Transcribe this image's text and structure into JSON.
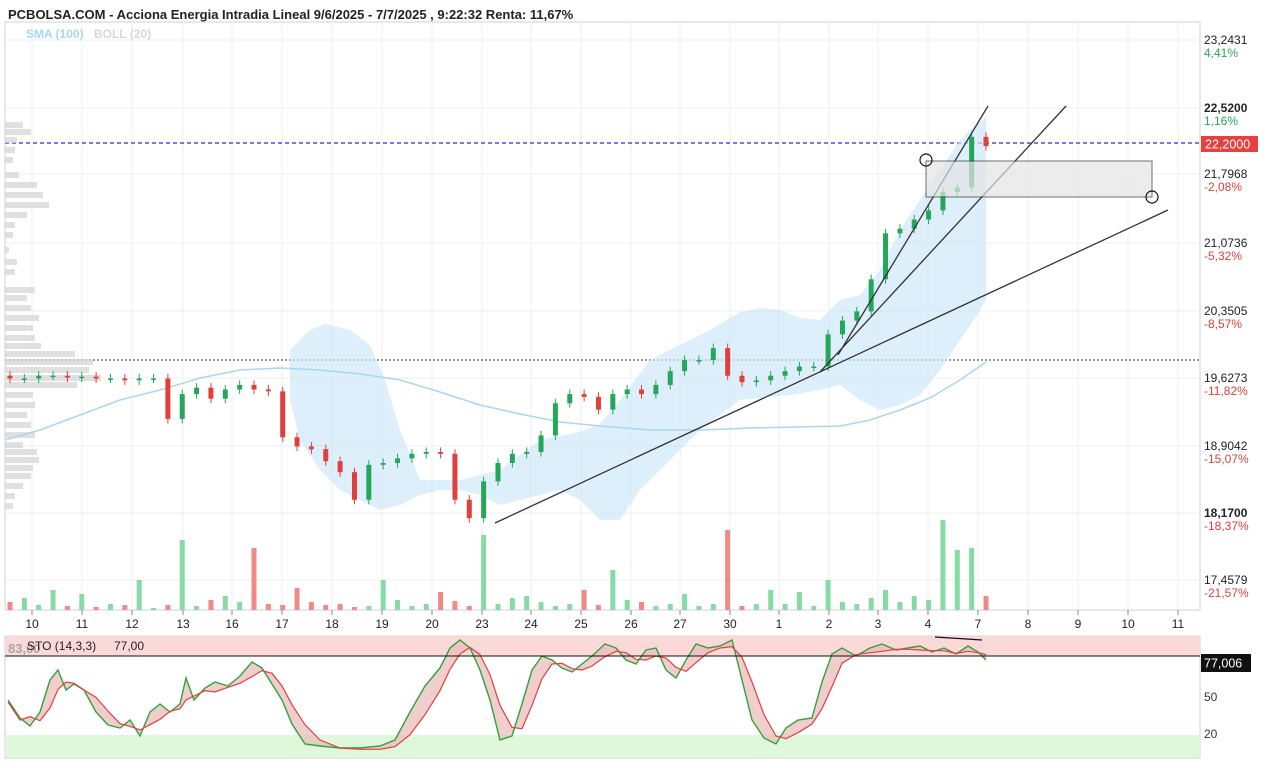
{
  "header": {
    "title": "PCBOLSA.COM - Acciona Energia Intradia Lineal 9/6/2025 - 7/7/2025 , 9:22:32 Renta: 11,67%",
    "sma_label": "SMA (100)",
    "boll_label": "BOLL (20)"
  },
  "price_axis": [
    {
      "price": "23,2431",
      "pct": "4,41%",
      "pos": true
    },
    {
      "price": "22,5200",
      "pct": "1,16%",
      "pos": true,
      "bold": true
    },
    {
      "price": "21,7968",
      "pct": "-2,08%",
      "pos": false
    },
    {
      "price": "21,0736",
      "pct": "-5,32%",
      "pos": false
    },
    {
      "price": "20,3505",
      "pct": "-8,57%",
      "pos": false
    },
    {
      "price": "19,6273",
      "pct": "-11,82%",
      "pos": false
    },
    {
      "price": "18,9042",
      "pct": "-15,07%",
      "pos": false
    },
    {
      "price": "18,1700",
      "pct": "-18,37%",
      "pos": false,
      "bold": true
    },
    {
      "price": "17,4579",
      "pct": "-21,57%",
      "pos": false
    }
  ],
  "current_price": "22,2000",
  "stoch": {
    "title": "STO (14,3,3)",
    "value_text": "77,00",
    "overlay_text": "83,00",
    "current": "77,006",
    "levels": [
      "50",
      "20"
    ]
  },
  "colors": {
    "up": "#26a65b",
    "down": "#e0403c",
    "vol_up": "#86dba4",
    "vol_down": "#f08a86",
    "band": "#cfe8f8",
    "sma": "#a9d7f1",
    "last_price_bg": "#e8403c",
    "dash_line": "#2b2bd8"
  },
  "chart_data": {
    "type": "candlestick",
    "title": "PCBOLSA.COM - Acciona Energia Intradia Lineal 9/6/2025 - 7/7/2025 , 9:22:32 Renta: 11,67%",
    "x_tick_labels": [
      "10",
      "11",
      "12",
      "13",
      "16",
      "17",
      "18",
      "19",
      "20",
      "23",
      "24",
      "25",
      "26",
      "27",
      "30",
      "1",
      "2",
      "3",
      "4",
      "7",
      "8",
      "9",
      "10",
      "11"
    ],
    "y_range": [
      17.2,
      23.6
    ],
    "last_price": 22.2,
    "reference_level": 19.75,
    "price_series_close": [
      19.72,
      19.72,
      19.75,
      19.75,
      19.73,
      19.74,
      19.72,
      19.72,
      19.7,
      19.72,
      19.72,
      19.28,
      19.55,
      19.62,
      19.5,
      19.6,
      19.65,
      19.6,
      19.58,
      19.08,
      18.98,
      18.95,
      18.82,
      18.7,
      18.4,
      18.78,
      18.8,
      18.85,
      18.9,
      18.92,
      18.9,
      18.4,
      18.2,
      18.6,
      18.8,
      18.9,
      18.92,
      19.1,
      19.45,
      19.55,
      19.52,
      19.38,
      19.55,
      19.6,
      19.55,
      19.65,
      19.8,
      19.92,
      19.92,
      20.05,
      19.75,
      19.68,
      19.7,
      19.75,
      19.8,
      19.85,
      19.85,
      20.2,
      20.35,
      20.45,
      20.8,
      21.3,
      21.35,
      21.45,
      21.55,
      21.75,
      21.8,
      22.35,
      22.25
    ]
  }
}
